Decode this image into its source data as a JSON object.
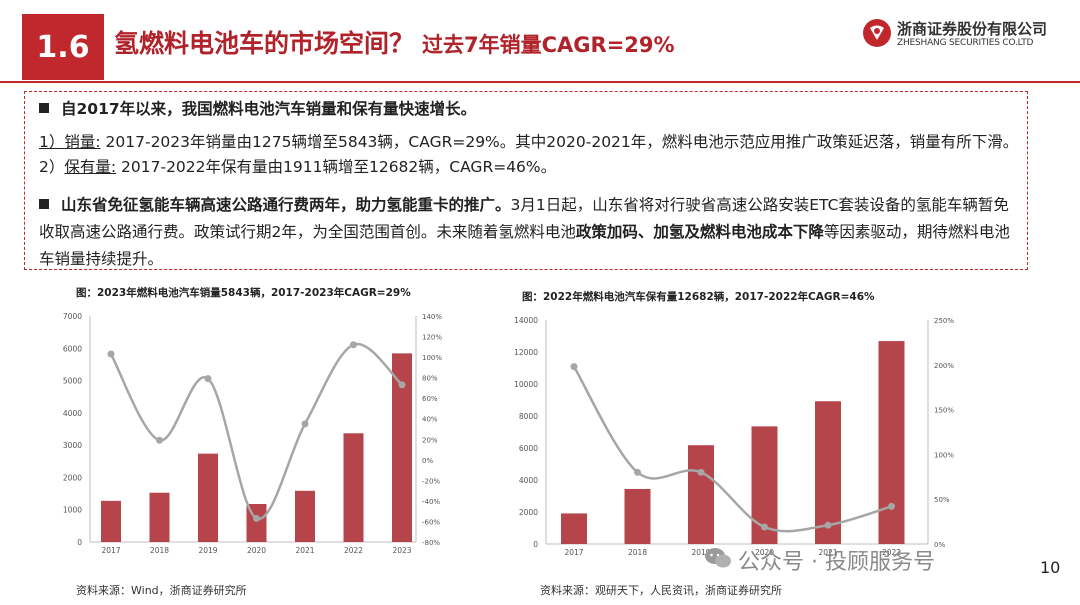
{
  "header": {
    "slide_number": "1.6",
    "title": "氢燃料电池车的市场空间？",
    "subtitle": "过去7年销量CAGR=29%",
    "brand_cn": "浙商证券股份有限公司",
    "brand_en": "ZHESHANG SECURITIES CO.LTD",
    "brand_color": "#c0282e"
  },
  "summary": {
    "bullet1": "自2017年以来，我国燃料电池汽车销量和保有量快速增长。",
    "p_sales_num": "1）",
    "p_sales_label": "销量:",
    "p_sales_text": " 2017-2023年销量由1275辆增至5843辆，CAGR=29%。其中2020-2021年，燃料电池示范应用推广政策延迟落，销量有所下滑。2）",
    "p_stock_label": "保有量:",
    "p_stock_text": " 2017-2022年保有量由1911辆增至12682辆，CAGR=46%。",
    "bullet2_bold": "山东省免征氢能车辆高速公路通行费两年，助力氢能重卡的推广。",
    "bullet2_text1": "3月1日起，山东省将对行驶省高速公路安装ETC套装设备的氢能车辆暂免收取高速公路通行费。政策试行期2年，为全国范围首创。未来随着氢燃料电池",
    "bullet2_bold2": "政策加码、加氢及燃料电池成本下降",
    "bullet2_text2": "等因素驱动，期待燃料电池车销量持续提升。"
  },
  "chart_left": {
    "title": "图：2023年燃料电池汽车销量5843辆，2017-2023年CAGR=29%",
    "source": "资料来源：Wind，浙商证券研究所"
  },
  "chart_right": {
    "title": "图：2022年燃料电池汽车保有量12682辆，2017-2022年CAGR=46%",
    "source": "资料来源：观研天下，人民资讯，浙商证券研究所"
  },
  "chart_data": [
    {
      "type": "bar",
      "categories": [
        "2017",
        "2018",
        "2019",
        "2020",
        "2021",
        "2022",
        "2023"
      ],
      "series": [
        {
          "values": [
            1275,
            1527,
            2737,
            1177,
            1586,
            3367,
            5843
          ],
          "color": "#b5454a"
        },
        {
          "type": "line",
          "axis": "right",
          "values": [
            1.03,
            0.19,
            0.79,
            -0.57,
            0.35,
            1.12,
            0.73
          ],
          "color": "#a6a6a6"
        }
      ],
      "ylim": [
        0,
        7000
      ],
      "yticks": [
        "0",
        "1000",
        "2000",
        "3000",
        "4000",
        "5000",
        "6000",
        "7000"
      ],
      "y2lim": [
        -0.8,
        1.4
      ],
      "y2ticks": [
        "-80%",
        "-60%",
        "-40%",
        "-20%",
        "0%",
        "20%",
        "40%",
        "60%",
        "80%",
        "100%",
        "120%",
        "140%"
      ],
      "grid": false
    },
    {
      "type": "bar",
      "categories": [
        "2017",
        "2018",
        "2019",
        "2020",
        "2021",
        "2022"
      ],
      "series": [
        {
          "values": [
            1911,
            3441,
            6175,
            7352,
            8922,
            12682
          ],
          "color": "#b5454a"
        },
        {
          "type": "line",
          "axis": "right",
          "values": [
            1.98,
            0.8,
            0.8,
            0.19,
            0.21,
            0.42
          ],
          "color": "#a6a6a6"
        }
      ],
      "ylim": [
        0,
        14000
      ],
      "yticks": [
        "0",
        "2000",
        "4000",
        "6000",
        "8000",
        "10000",
        "12000",
        "14000"
      ],
      "y2lim": [
        0,
        2.5
      ],
      "y2ticks": [
        "0%",
        "50%",
        "100%",
        "150%",
        "200%",
        "250%"
      ],
      "grid": false
    }
  ],
  "watermark": "公众号 · 投顾服务号",
  "page_number": "10"
}
